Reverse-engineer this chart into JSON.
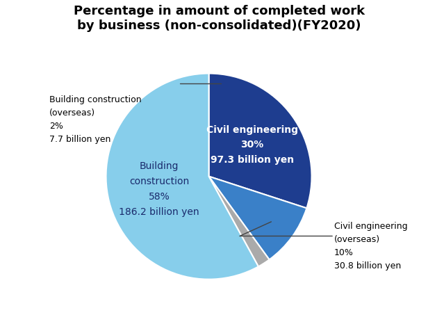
{
  "title": "Percentage in amount of completed work\nby business (non-consolidated)(FY2020)",
  "slices": [
    {
      "label": "Civil engineering",
      "pct": 30,
      "value": "97.3 billion yen",
      "color": "#1e3d8f"
    },
    {
      "label": "Civil engineering\n(overseas)",
      "pct": 10,
      "value": "30.8 billion yen",
      "color": "#3a80c8"
    },
    {
      "label": "Building construction\n(overseas)",
      "pct": 2,
      "value": "7.7 billion yen",
      "color": "#aaaaaa"
    },
    {
      "label": "Building\nconstruction",
      "pct": 58,
      "value": "186.2 billion yen",
      "color": "#87ceeb"
    }
  ],
  "start_angle": 90,
  "figsize": [
    6.39,
    4.53
  ],
  "dpi": 100,
  "title_fontsize": 13,
  "inside_label_fontsize": 10,
  "outside_label_fontsize": 9
}
